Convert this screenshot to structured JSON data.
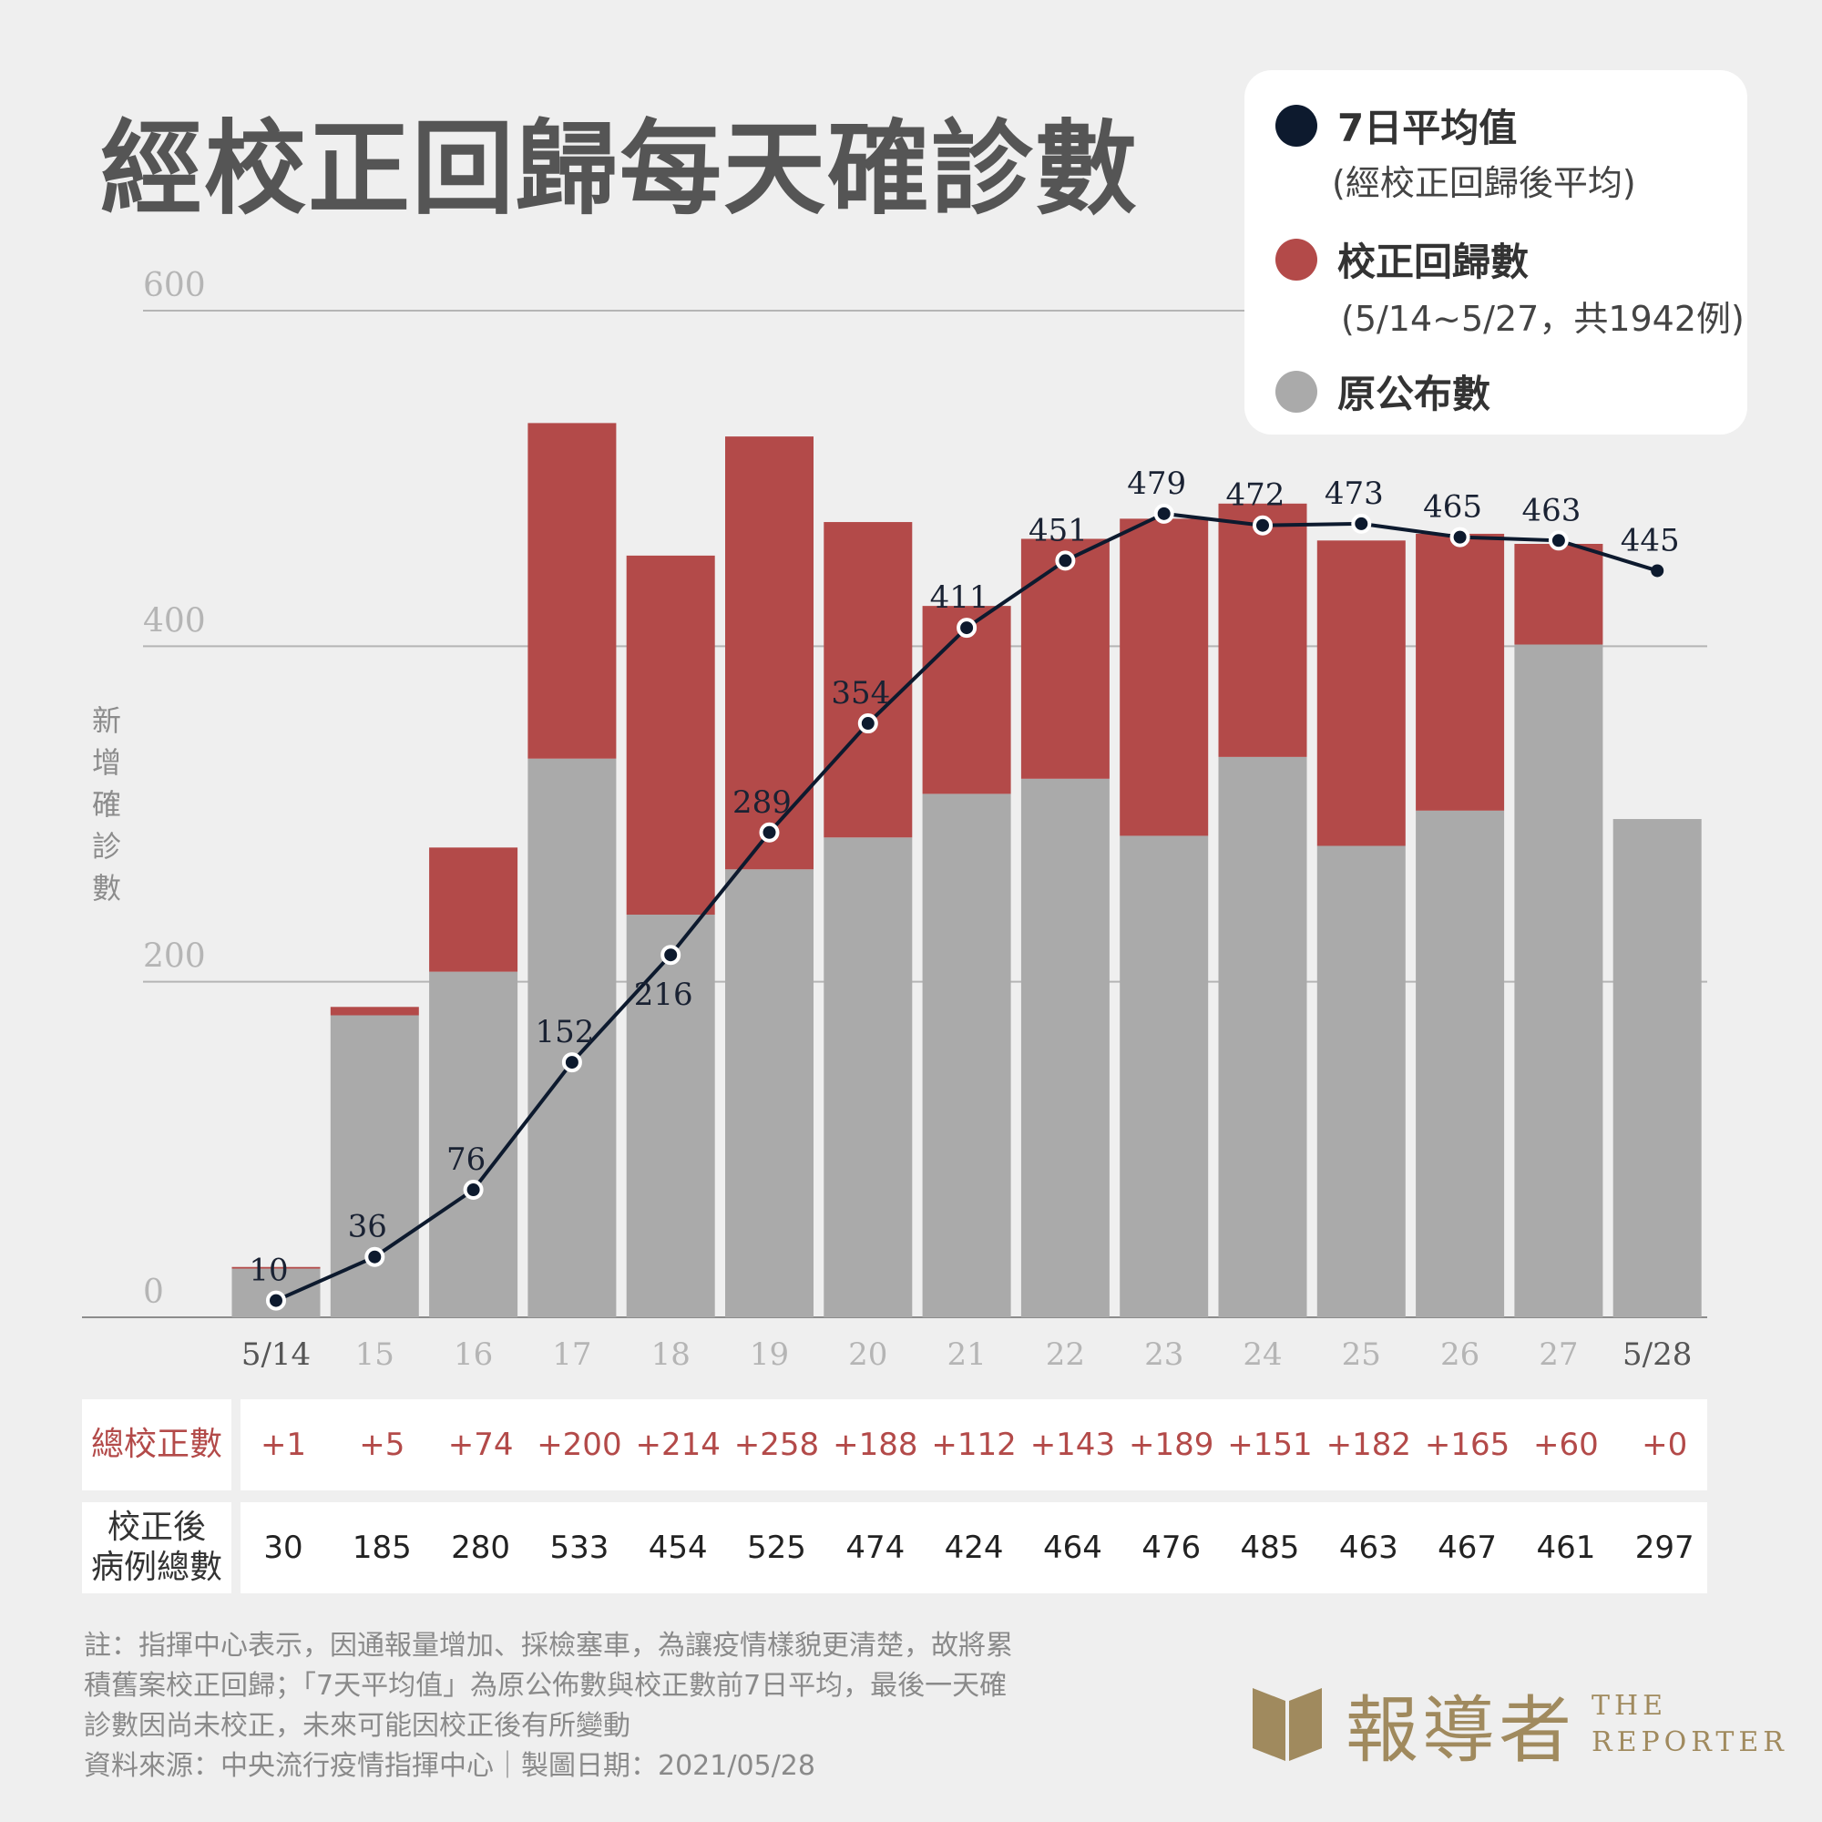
{
  "title": "經校正回歸每天確診數",
  "legend": {
    "avg_label": "7日平均值",
    "avg_sub": "(經校正回歸後平均)",
    "red_label": "校正回歸數",
    "red_sub": "(5/14~5/27，共1942例)",
    "gray_label": "原公布數"
  },
  "colors": {
    "red": "#b34a49",
    "gray": "#aaaaaa",
    "navy": "#0d1a2e",
    "bg": "#efefef",
    "logo": "#a08a5e"
  },
  "chart_data": {
    "type": "bar",
    "stacked": true,
    "ylabel": "新增確診數",
    "ylim": [
      0,
      600
    ],
    "yticks": [
      "0",
      "200",
      "400",
      "600"
    ],
    "grid": true,
    "legend_position": "top-right",
    "categories": [
      "5/14",
      "15",
      "16",
      "17",
      "18",
      "19",
      "20",
      "21",
      "22",
      "23",
      "24",
      "25",
      "26",
      "27",
      "5/28"
    ],
    "series": [
      {
        "name": "原公布數",
        "values": [
          29,
          180,
          206,
          333,
          240,
          267,
          286,
          312,
          321,
          287,
          334,
          281,
          302,
          401,
          297
        ]
      },
      {
        "name": "校正回歸數",
        "values": [
          1,
          5,
          74,
          200,
          214,
          258,
          188,
          112,
          143,
          189,
          151,
          182,
          165,
          60,
          0
        ]
      }
    ],
    "line": {
      "name": "7日平均值",
      "values": [
        10,
        36,
        76,
        152,
        216,
        289,
        354,
        411,
        451,
        479,
        472,
        473,
        465,
        463,
        445
      ],
      "labels": [
        "10",
        "36",
        "76",
        "152",
        "216",
        "289",
        "354",
        "411",
        "451",
        "479",
        "472",
        "473",
        "465",
        "463",
        "445"
      ]
    }
  },
  "table": {
    "correction_label": "總校正數",
    "corrections": [
      "+1",
      "+5",
      "+74",
      "+200",
      "+214",
      "+258",
      "+188",
      "+112",
      "+143",
      "+189",
      "+151",
      "+182",
      "+165",
      "+60",
      "+0"
    ],
    "total_label_1": "校正後",
    "total_label_2": "病例總數",
    "totals": [
      "30",
      "185",
      "280",
      "533",
      "454",
      "525",
      "474",
      "424",
      "464",
      "476",
      "485",
      "463",
      "467",
      "461",
      "297"
    ]
  },
  "notes": {
    "line1": "註：指揮中心表示，因通報量增加、採檢塞車，為讓疫情樣貌更清楚，故將累",
    "line2": "積舊案校正回歸；「7天平均值」為原公佈數與校正數前7日平均，最後一天確",
    "line3": "診數因尚未校正，未來可能因校正後有所變動",
    "line4": "資料來源：中央流行疫情指揮中心｜製圖日期：2021/05/28"
  },
  "logo": {
    "name": "報導者",
    "en1": "THE",
    "en2": "REPORTER"
  }
}
